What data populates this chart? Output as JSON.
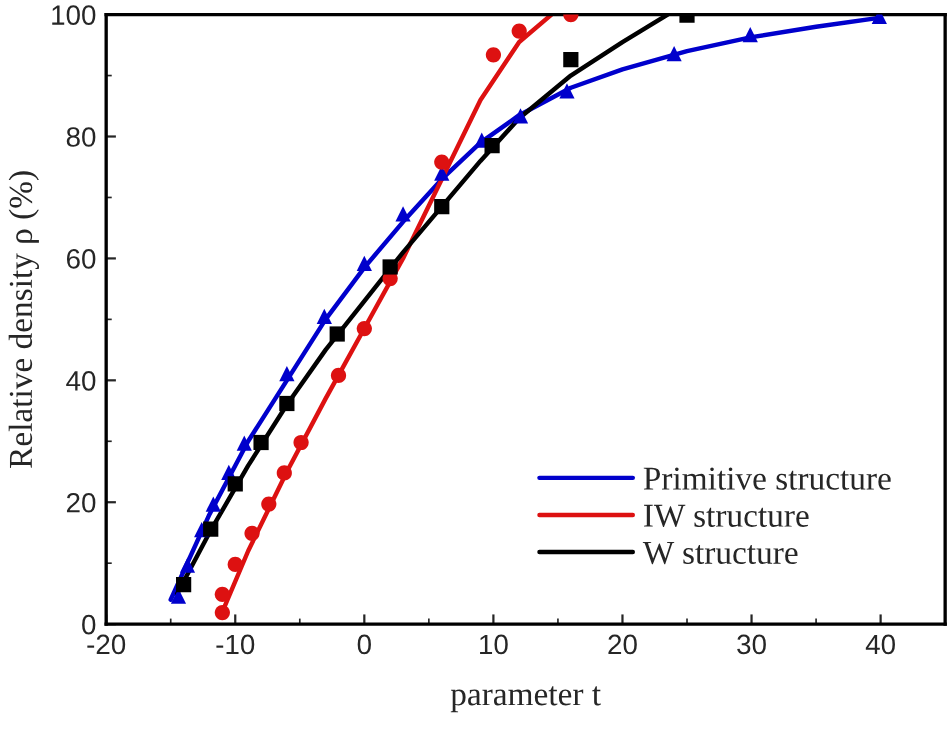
{
  "chart_data": {
    "type": "line",
    "xlabel": "parameter t",
    "ylabel": "Relative density ρ (%)",
    "xlim": [
      -20,
      45
    ],
    "xticks": [
      -20,
      -10,
      0,
      10,
      20,
      30,
      40
    ],
    "ylim": [
      0,
      100
    ],
    "yticks": [
      0,
      20,
      40,
      60,
      80,
      100
    ],
    "grid": false,
    "legend": "bottom right",
    "series": [
      {
        "name": "Primitive structure",
        "color": "#0000cc",
        "x": [
          -15,
          -12,
          -9,
          -6,
          -3,
          0,
          3,
          6,
          9,
          12,
          16,
          20,
          25,
          30,
          35,
          40
        ],
        "values": [
          4,
          18,
          30,
          40,
          50,
          58.5,
          66,
          73,
          79,
          83.5,
          88,
          91,
          94,
          96.3,
          98,
          99.5
        ]
      },
      {
        "name": "IW structure",
        "color": "#dd1111",
        "x": [
          -11,
          -9,
          -6,
          -3,
          0,
          3,
          6,
          9,
          12,
          14.5
        ],
        "values": [
          2,
          12,
          25,
          37,
          48.5,
          60,
          73,
          86,
          95.5,
          100
        ]
      },
      {
        "name": "W structure",
        "color": "#000000",
        "x": [
          -14.5,
          -12,
          -9,
          -6,
          -3,
          0,
          3,
          6,
          9,
          12,
          16,
          20,
          23.5
        ],
        "values": [
          5,
          15,
          26,
          36,
          45,
          53,
          61,
          68.5,
          76,
          83,
          90,
          95.5,
          100
        ]
      },
      {
        "type": "scatter",
        "color": "#0000cc",
        "marker": "triangle",
        "x": [
          -14.4,
          -13.7,
          -12.6,
          -11.7,
          -10.5,
          -9.3,
          -6,
          -3.1,
          0,
          3,
          6,
          9.1,
          12.1,
          15.7,
          24,
          29.9,
          39.9
        ],
        "values": [
          4.6,
          9.7,
          15.5,
          19.7,
          24.9,
          29.7,
          41.1,
          50.5,
          59.2,
          67.3,
          74,
          79.4,
          83.4,
          87.5,
          93.6,
          96.7,
          99.7
        ]
      },
      {
        "type": "scatter",
        "color": "#dd1111",
        "marker": "circle",
        "x": [
          -11,
          -11,
          -10,
          -8.7,
          -7.4,
          -6.2,
          -4.9,
          -2,
          0,
          2,
          6,
          10,
          12,
          16
        ],
        "values": [
          1.9,
          4.9,
          9.8,
          14.9,
          19.7,
          24.8,
          29.8,
          40.8,
          48.5,
          56.7,
          75.8,
          93.4,
          97.3,
          100
        ]
      },
      {
        "type": "scatter",
        "color": "#000000",
        "marker": "square",
        "x": [
          -14,
          -11.9,
          -10,
          -8,
          -6,
          -2.1,
          2,
          6,
          9.9,
          16,
          25
        ],
        "values": [
          6.5,
          15.6,
          23,
          29.8,
          36.2,
          47.6,
          58.6,
          68.5,
          78.5,
          92.6,
          99.9
        ]
      }
    ]
  }
}
